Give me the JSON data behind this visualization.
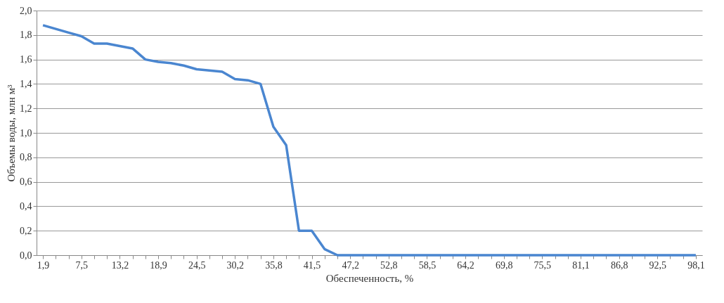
{
  "chart_data": {
    "type": "line",
    "xlabel": "Обеспеченность, %",
    "ylabel": "Объемы воды, млн м³",
    "categories": [
      "1,9",
      null,
      null,
      "7,5",
      null,
      null,
      "13,2",
      null,
      null,
      "18,9",
      null,
      null,
      "24,5",
      null,
      null,
      "30,2",
      null,
      null,
      "35,8",
      null,
      null,
      "41,5",
      null,
      null,
      "47,2",
      null,
      null,
      "52,8",
      null,
      null,
      "58,5",
      null,
      null,
      "64,2",
      null,
      null,
      "69,8",
      null,
      null,
      "75,5",
      null,
      null,
      "81,1",
      null,
      null,
      "86,8",
      null,
      null,
      "92,5",
      null,
      null,
      "98,1"
    ],
    "series": [
      {
        "color": "#4a86d0",
        "values": [
          1.88,
          1.85,
          1.82,
          1.79,
          1.73,
          1.73,
          1.71,
          1.69,
          1.6,
          1.58,
          1.57,
          1.55,
          1.52,
          1.51,
          1.5,
          1.44,
          1.43,
          1.4,
          1.05,
          0.9,
          0.2,
          0.2,
          0.05,
          0,
          0,
          0,
          0,
          0,
          0,
          0,
          0,
          0,
          0,
          0,
          0,
          0,
          0,
          0,
          0,
          0,
          0,
          0,
          0,
          0,
          0,
          0,
          0,
          0,
          0,
          0,
          0,
          0
        ]
      }
    ],
    "ylim": [
      0,
      2.0
    ],
    "yticks": [
      {
        "value": 0,
        "label": "0,0"
      },
      {
        "value": 0.2,
        "label": "0,2"
      },
      {
        "value": 0.4,
        "label": "0,4"
      },
      {
        "value": 0.6,
        "label": "0,6"
      },
      {
        "value": 0.8,
        "label": "0,8"
      },
      {
        "value": 1.0,
        "label": "1,0"
      },
      {
        "value": 1.2,
        "label": "1,2"
      },
      {
        "value": 1.4,
        "label": "1,4"
      },
      {
        "value": 1.6,
        "label": "1,6"
      },
      {
        "value": 1.8,
        "label": "1,8"
      },
      {
        "value": 2.0,
        "label": "2,0"
      }
    ],
    "grid": "y",
    "marker": "none",
    "line_style": "solid"
  }
}
